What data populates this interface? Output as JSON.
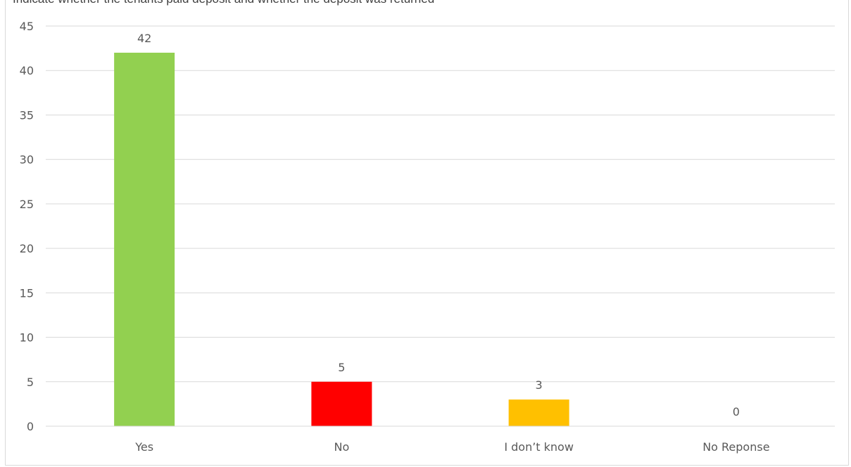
{
  "header": {
    "clipped_text": "Indicate whether the tenants paid deposit and whether the deposit was returned"
  },
  "chart_data": {
    "type": "bar",
    "categories": [
      "Yes",
      "No",
      "I don’t know",
      "No Reponse"
    ],
    "values": [
      42,
      5,
      3,
      0
    ],
    "colors": [
      "#92d050",
      "#ff0000",
      "#ffc000",
      "#a5a5a5"
    ],
    "data_labels": [
      "42",
      "5",
      "3",
      "0"
    ],
    "ylim": [
      0,
      45
    ],
    "yticks": [
      0,
      5,
      10,
      15,
      20,
      25,
      30,
      35,
      40,
      45
    ],
    "grid": true,
    "legend": "none"
  }
}
